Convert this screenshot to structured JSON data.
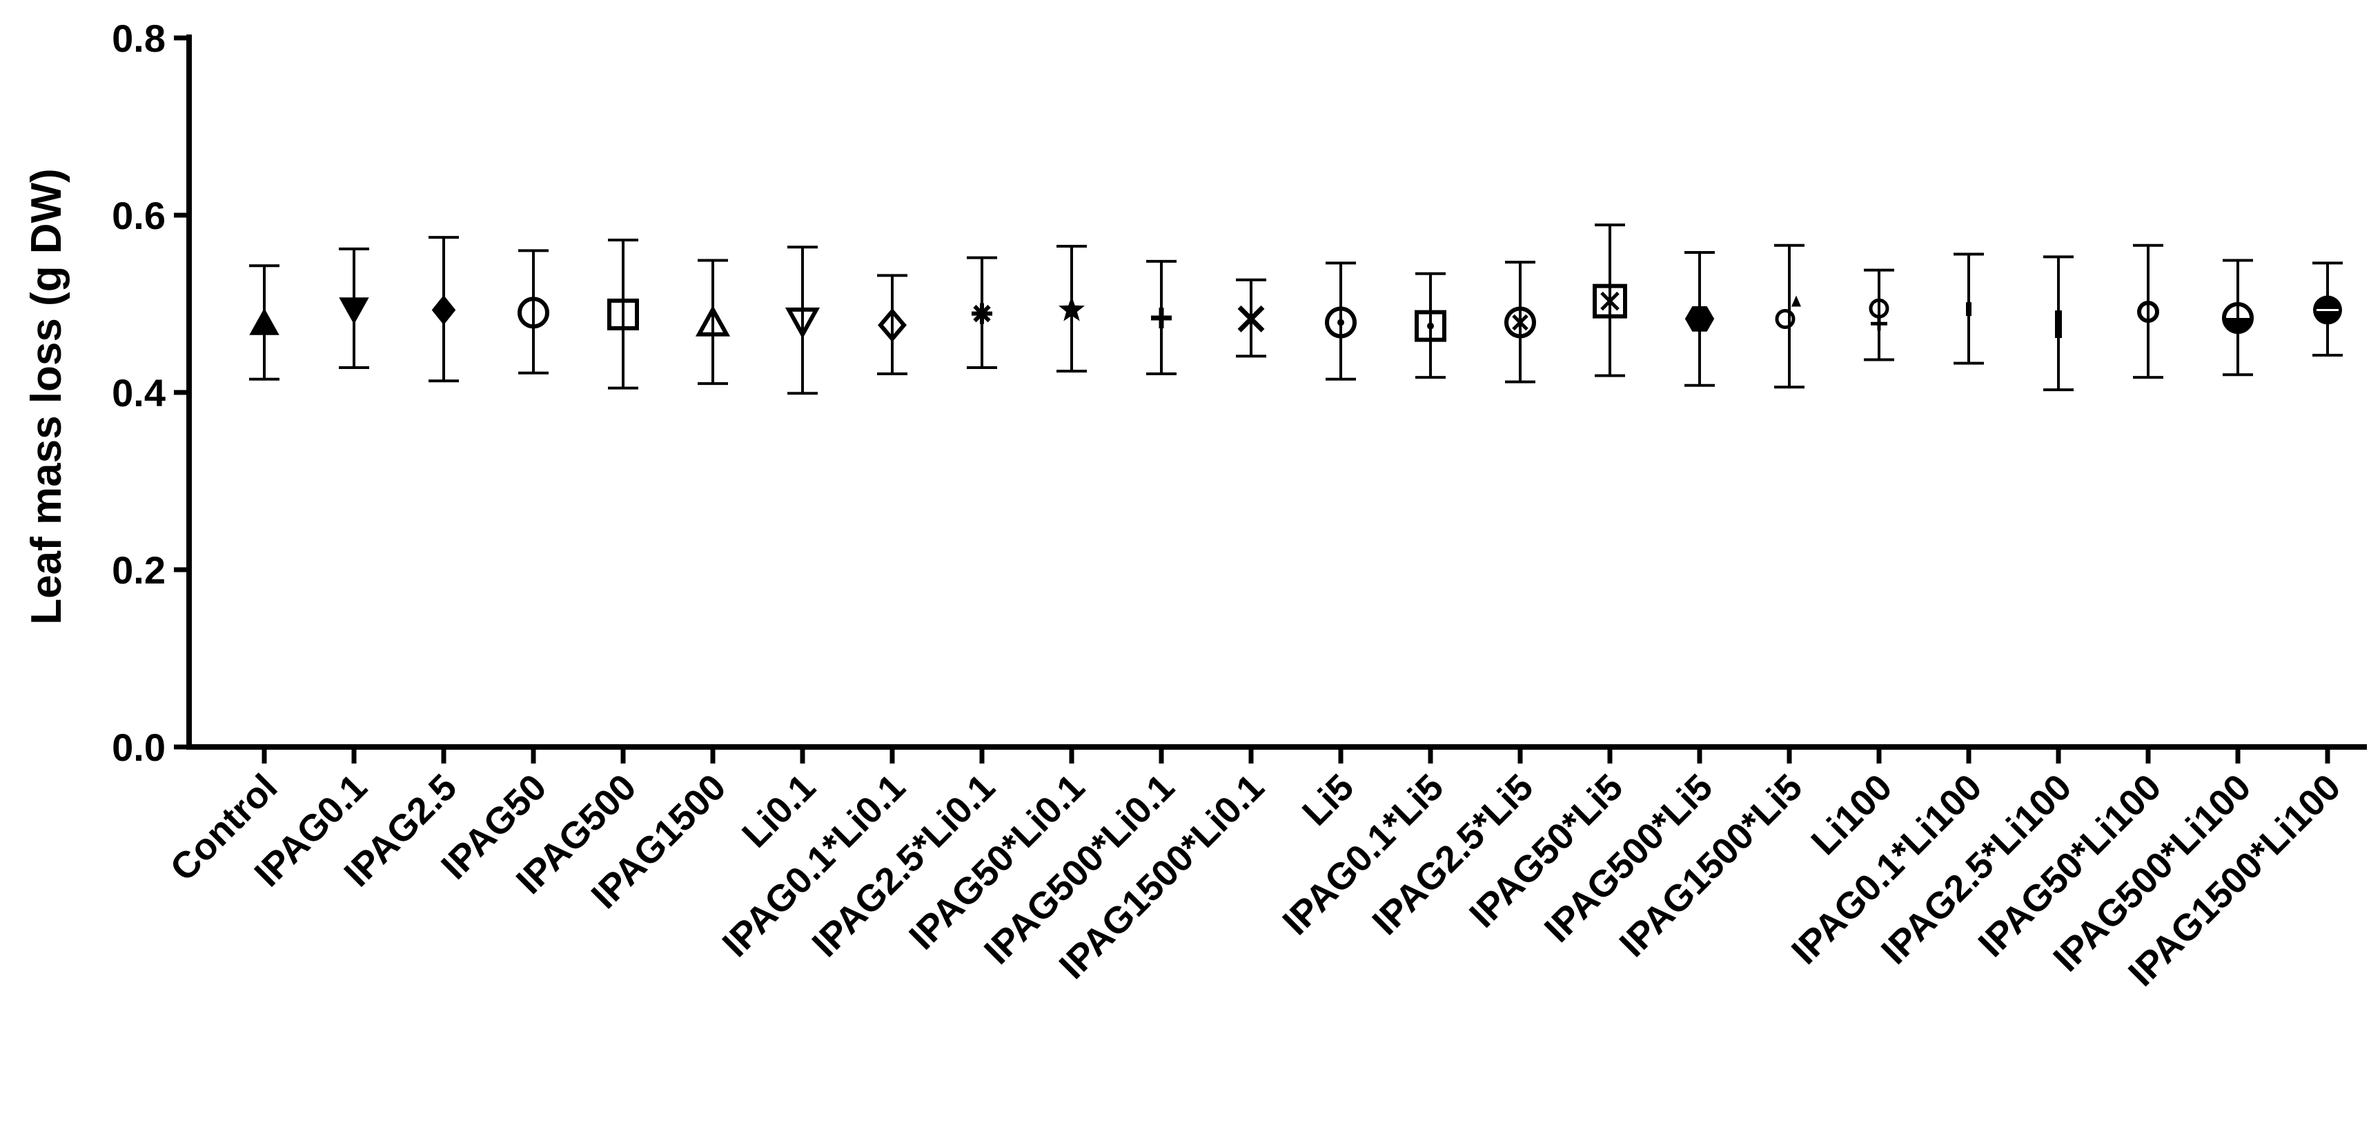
{
  "chart_data": {
    "type": "scatter",
    "title": "",
    "xlabel": "",
    "ylabel": "Leaf mass loss (g DW)",
    "ylim": [
      0,
      0.8
    ],
    "yticks": [
      "0.0",
      "0.2",
      "0.4",
      "0.6",
      "0.8"
    ],
    "grid": false,
    "legend": "none",
    "error_bars": true,
    "categories": [
      "Control",
      "IPAG0.1",
      "IPAG2.5",
      "IPAG50",
      "IPAG500",
      "IPAG1500",
      "Li0.1",
      "IPAG0.1*Li0.1",
      "IPAG2.5*Li0.1",
      "IPAG50*Li0.1",
      "IPAG500*Li0.1",
      "IPAG1500*Li0.1",
      "Li5",
      "IPAG0.1*Li5",
      "IPAG2.5*Li5",
      "IPAG50*Li5",
      "IPAG500*Li5",
      "IPAG1500*Li5",
      "Li100",
      "IPAG0.1*Li100",
      "IPAG2.5*Li100",
      "IPAG50*Li100",
      "IPAG500*Li100",
      "IPAG1500*Li100"
    ],
    "values": [
      0.478,
      0.494,
      0.493,
      0.49,
      0.488,
      0.478,
      0.481,
      0.476,
      0.489,
      0.493,
      0.484,
      0.483,
      0.479,
      0.475,
      0.479,
      0.503,
      0.483,
      0.486,
      0.487,
      0.494,
      0.477,
      0.491,
      0.484,
      0.493
    ],
    "err_upper": [
      0.543,
      0.562,
      0.575,
      0.56,
      0.572,
      0.549,
      0.564,
      0.532,
      0.552,
      0.565,
      0.548,
      0.527,
      0.546,
      0.534,
      0.547,
      0.589,
      0.558,
      0.566,
      0.538,
      0.556,
      0.553,
      0.566,
      0.549,
      0.546
    ],
    "err_lower": [
      0.415,
      0.428,
      0.413,
      0.422,
      0.405,
      0.41,
      0.399,
      0.421,
      0.428,
      0.424,
      0.421,
      0.441,
      0.415,
      0.417,
      0.412,
      0.419,
      0.408,
      0.406,
      0.437,
      0.433,
      0.403,
      0.417,
      0.42,
      0.442
    ],
    "markers": [
      "triangle-up",
      "triangle-down",
      "diamond",
      "circle-open",
      "square-open",
      "triangle-open",
      "triangle-down-open",
      "diamond-open",
      "asterisk",
      "star",
      "plus",
      "cross",
      "circle-open-dot",
      "square-open-dot",
      "circle-cross",
      "square-cross",
      "hexagon",
      "circle-small-triangle",
      "circle-small-plus",
      "dash-vertical",
      "bar-vertical",
      "circle-small-open",
      "circle-half",
      "circle-half-filled"
    ]
  }
}
